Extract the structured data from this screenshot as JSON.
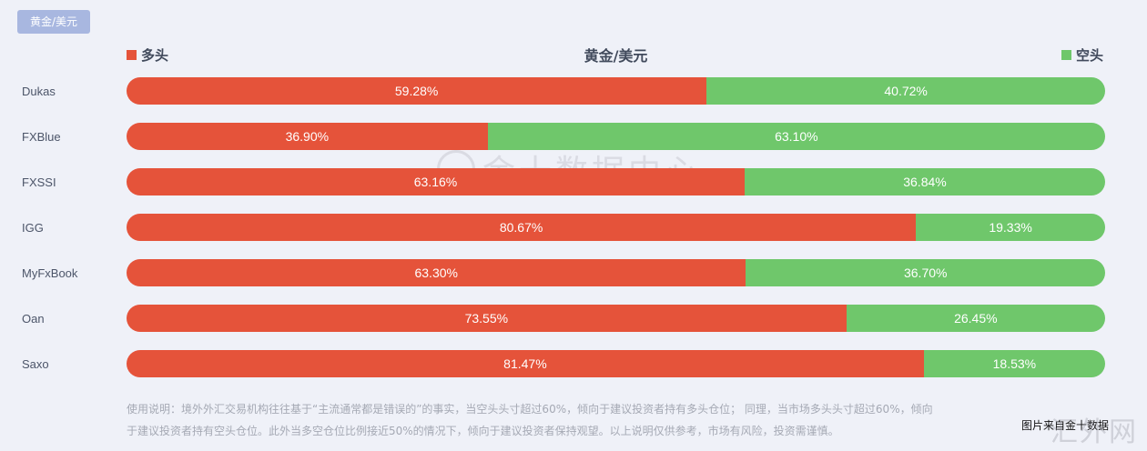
{
  "tab": {
    "label": "黄金/美元"
  },
  "legend": {
    "long_label": "多头",
    "short_label": "空头",
    "long_color": "#e5533a",
    "short_color": "#6fc76b"
  },
  "chart_data": {
    "type": "bar",
    "orientation": "horizontal-stacked-100",
    "title": "黄金/美元",
    "categories": [
      "Dukas",
      "FXBlue",
      "FXSSI",
      "IGG",
      "MyFxBook",
      "Oan",
      "Saxo"
    ],
    "series": [
      {
        "name": "多头",
        "color": "#e5533a",
        "values": [
          59.28,
          36.9,
          63.16,
          80.67,
          63.3,
          73.55,
          81.47
        ]
      },
      {
        "name": "空头",
        "color": "#6fc76b",
        "values": [
          40.72,
          63.1,
          36.84,
          19.33,
          36.7,
          26.45,
          18.53
        ]
      }
    ],
    "value_labels": {
      "long": [
        "59.28%",
        "36.90%",
        "63.16%",
        "80.67%",
        "63.30%",
        "73.55%",
        "81.47%"
      ],
      "short": [
        "40.72%",
        "63.10%",
        "36.84%",
        "19.33%",
        "36.70%",
        "26.45%",
        "18.53%"
      ]
    },
    "legend_position": "top"
  },
  "note": {
    "line1": "使用说明：境外外汇交易机构往往基于“主流通常都是错误的”的事实，当空头头寸超过60%，倾向于建议投资者持有多头仓位； 同理，当市场多头头寸超过60%，倾向",
    "line2": "于建议投资者持有空头仓位。此外当多空仓位比例接近50%的情况下，倾向于建议投资者保持观望。以上说明仅供参考，市场有风险，投资需谨慎。"
  },
  "source": "图片来自金十数据",
  "watermark": "金十数据中心",
  "corner_watermark": "汇外网"
}
